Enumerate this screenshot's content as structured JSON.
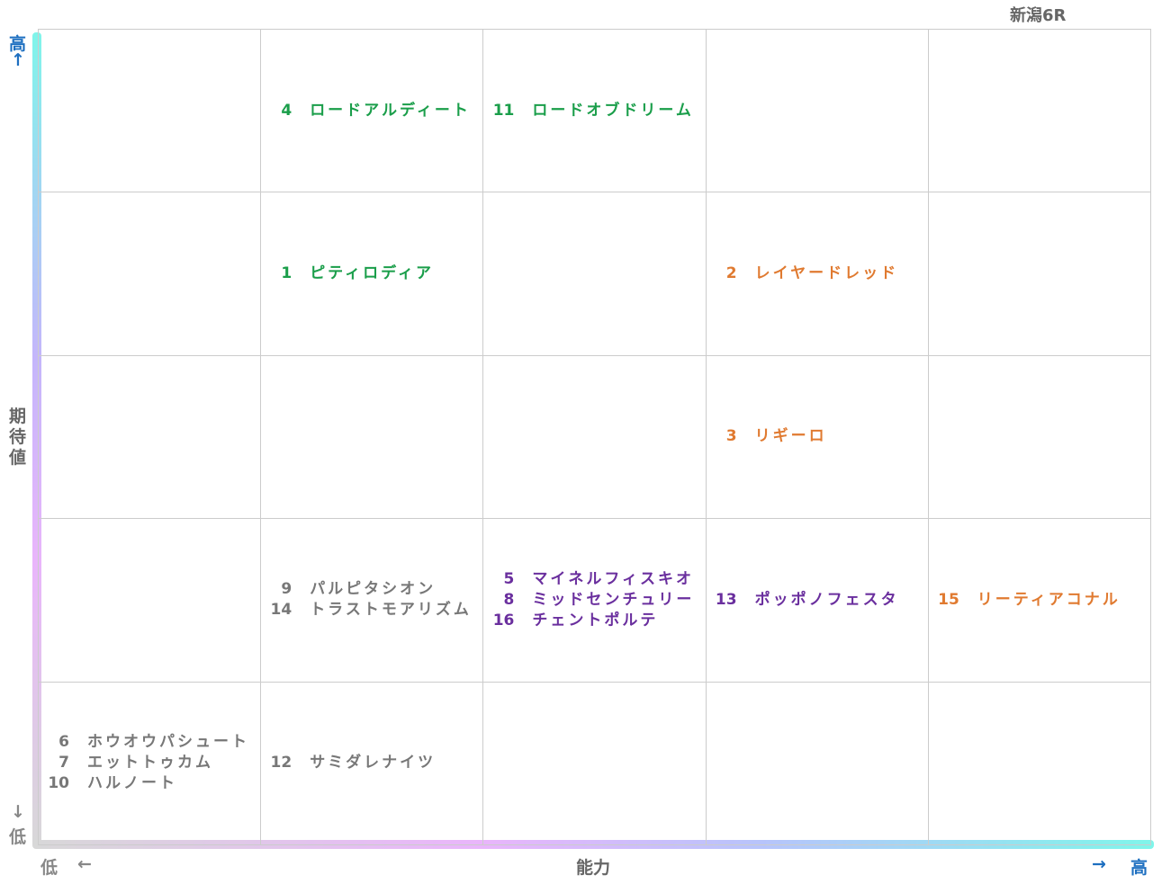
{
  "race": "新潟6R",
  "y_axis": {
    "high": "高",
    "high_arrow": "↑",
    "label": "期待値",
    "low_arrow": "↓",
    "low": "低"
  },
  "x_axis": {
    "low": "低",
    "low_arrow": "←",
    "label": "能力",
    "high_arrow": "→",
    "high": "高"
  },
  "rows": [
    [
      [],
      [
        {
          "number": 4,
          "name": "ロードアルディート",
          "color": "#1a9e4a"
        }
      ],
      [
        {
          "number": 11,
          "name": "ロードオブドリーム",
          "color": "#1a9e4a"
        }
      ],
      [],
      []
    ],
    [
      [],
      [
        {
          "number": 1,
          "name": "ピティロディア",
          "color": "#1a9e4a"
        }
      ],
      [],
      [
        {
          "number": 2,
          "name": "レイヤードレッド",
          "color": "#e07a30"
        }
      ],
      []
    ],
    [
      [],
      [],
      [],
      [
        {
          "number": 3,
          "name": "リギーロ",
          "color": "#e07a30"
        }
      ],
      []
    ],
    [
      [],
      [
        {
          "number": 9,
          "name": "パルピタシオン",
          "color": "#777777"
        },
        {
          "number": 14,
          "name": "トラストモアリズム",
          "color": "#777777"
        }
      ],
      [
        {
          "number": 5,
          "name": "マイネルフィスキオ",
          "color": "#6a2f9e"
        },
        {
          "number": 8,
          "name": "ミッドセンチュリー",
          "color": "#6a2f9e"
        },
        {
          "number": 16,
          "name": "チェントポルテ",
          "color": "#6a2f9e"
        }
      ],
      [
        {
          "number": 13,
          "name": "ポッポノフェスタ",
          "color": "#6a2f9e"
        }
      ],
      [
        {
          "number": 15,
          "name": "リーティアコナル",
          "color": "#e07a30"
        }
      ]
    ],
    [
      [
        {
          "number": 6,
          "name": "ホウオウパシュート",
          "color": "#777777"
        },
        {
          "number": 7,
          "name": "エットトゥカム",
          "color": "#777777"
        },
        {
          "number": 10,
          "name": "ハルノート",
          "color": "#777777"
        }
      ],
      [
        {
          "number": 12,
          "name": "サミダレナイツ",
          "color": "#777777"
        }
      ],
      [],
      [],
      []
    ]
  ]
}
